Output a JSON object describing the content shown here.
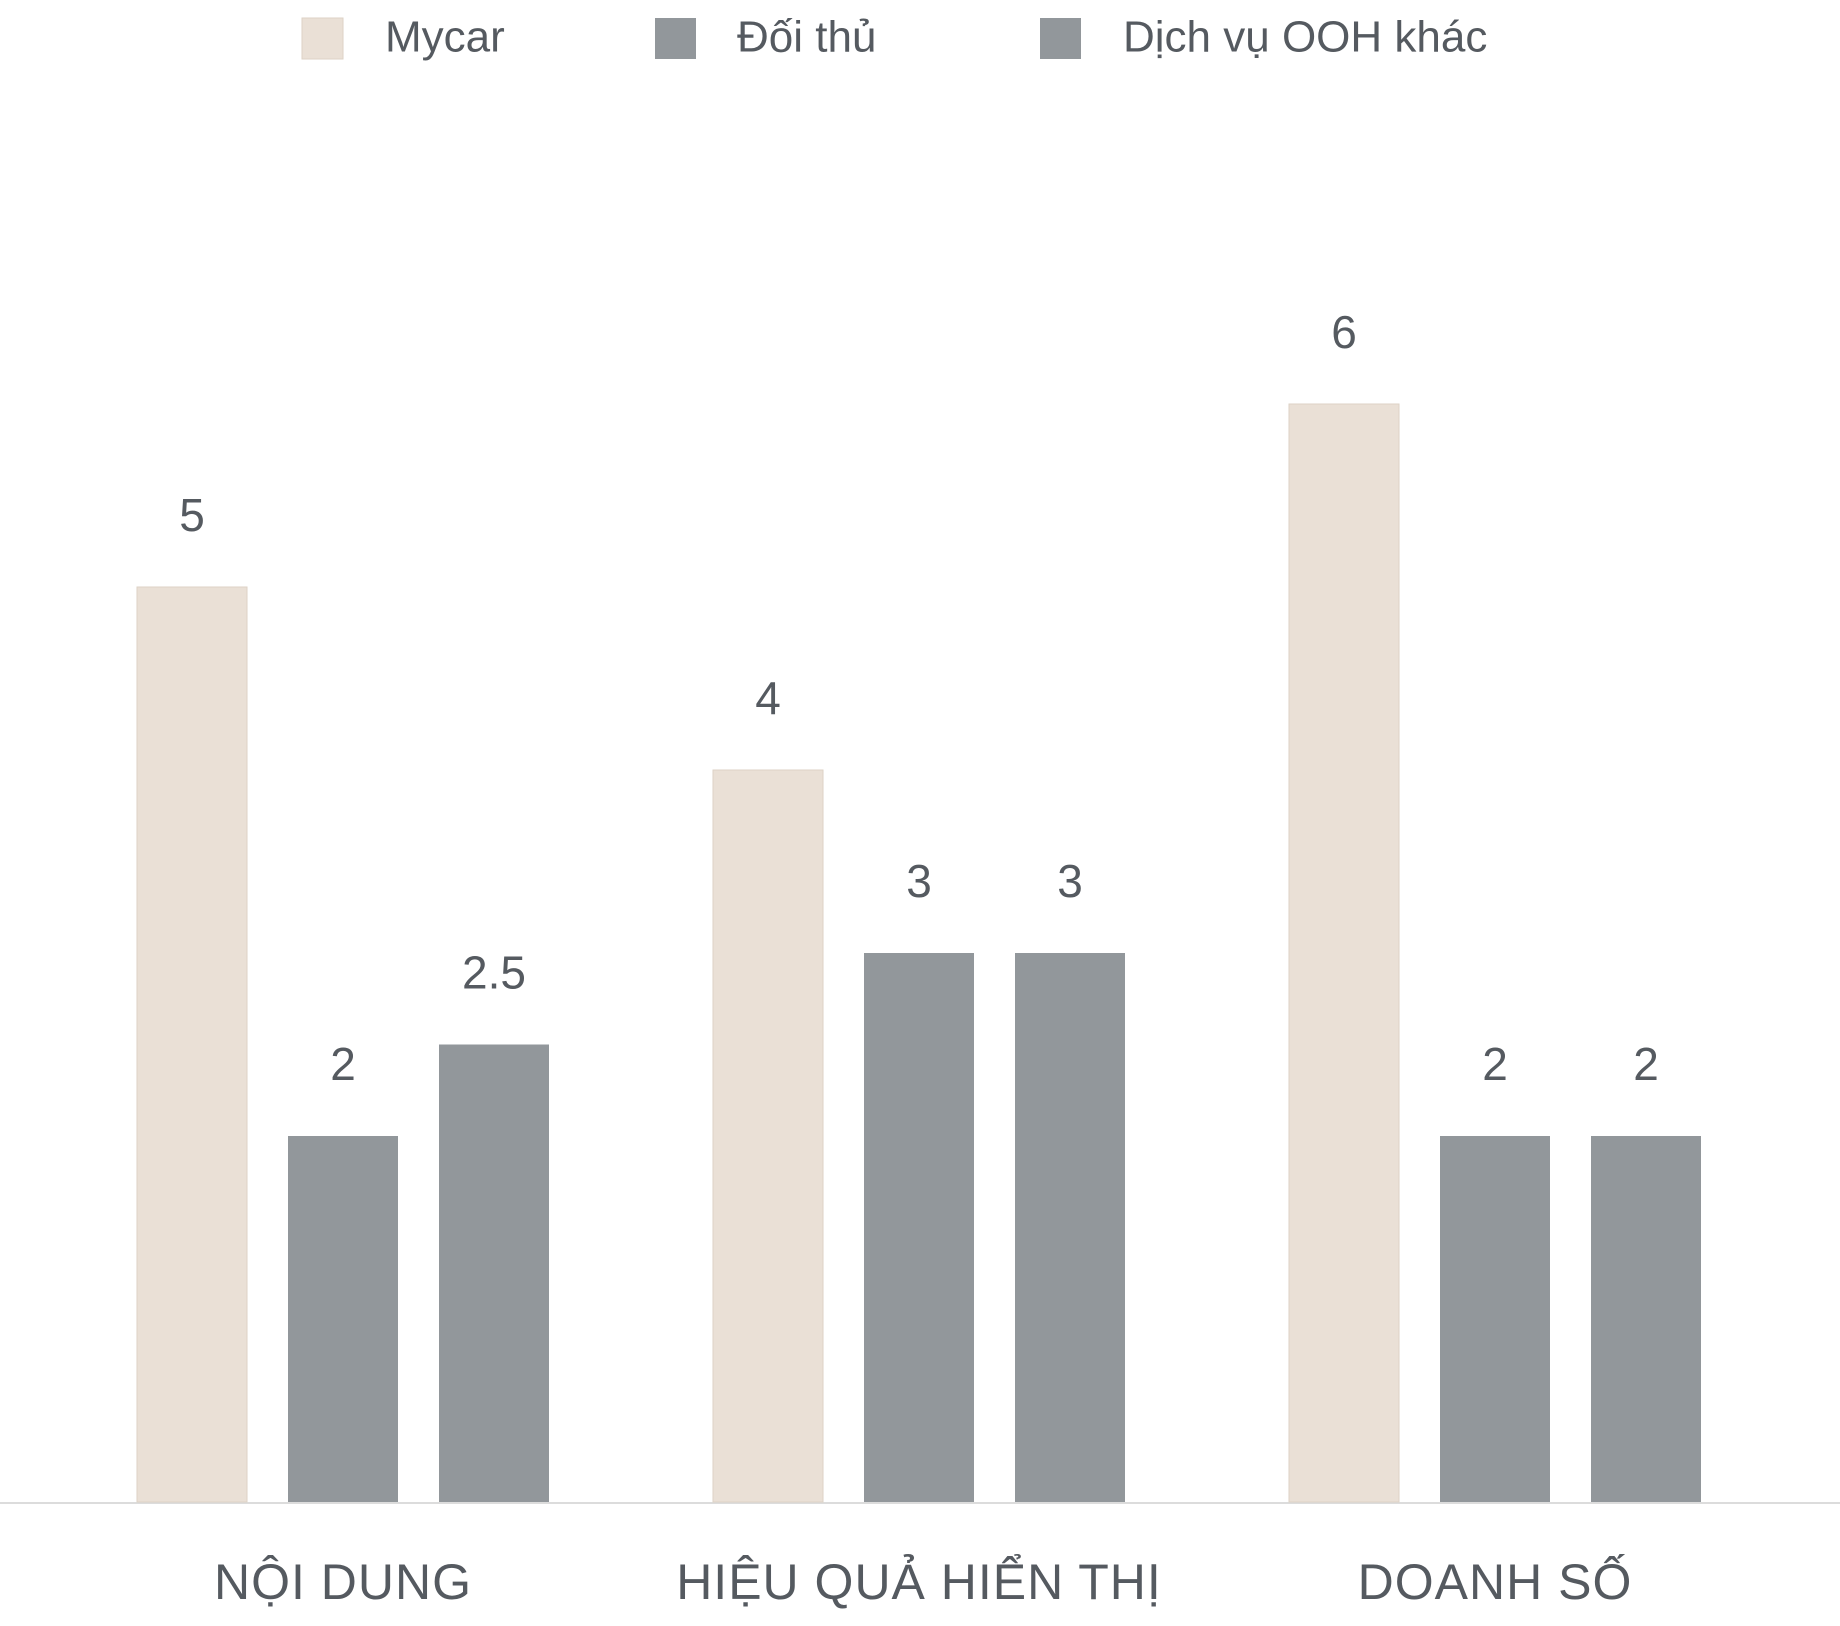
{
  "chart_data": {
    "type": "bar",
    "categories": [
      "NỘI DUNG",
      "HIỆU QUẢ HIỂN THỊ",
      "DOANH SỐ"
    ],
    "series": [
      {
        "name": "Mycar",
        "color": "#eae0d6",
        "values": [
          5,
          4,
          6
        ]
      },
      {
        "name": "Đối thủ",
        "color": "#92979b",
        "values": [
          2,
          3,
          2
        ]
      },
      {
        "name": "Dịch vụ OOH khác",
        "color": "#92979b",
        "values": [
          2.5,
          3,
          2
        ]
      }
    ],
    "ylim": [
      0,
      7
    ],
    "legend": "top"
  }
}
